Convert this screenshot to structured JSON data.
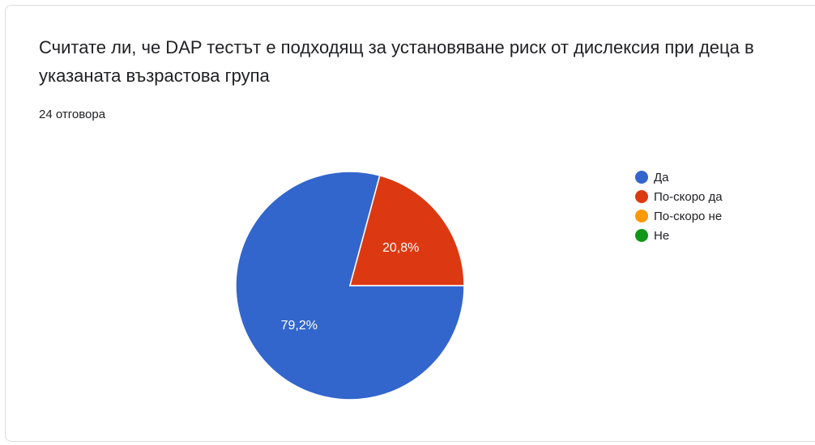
{
  "question": {
    "title": "Считате ли, че DAP тестът е подходящ за установяване риск от дислексия при деца в указаната възрастова група",
    "responses_label": "24 отговора"
  },
  "chart_data": {
    "type": "pie",
    "categories": [
      "Да",
      "По-скоро да",
      "По-скоро не",
      "Не"
    ],
    "values": [
      79.2,
      20.8,
      0,
      0
    ],
    "data_labels": [
      "79,2%",
      "20,8%",
      "",
      ""
    ],
    "colors": [
      "#3366cc",
      "#dc3912",
      "#ff9900",
      "#109618"
    ],
    "legend_position": "right"
  }
}
